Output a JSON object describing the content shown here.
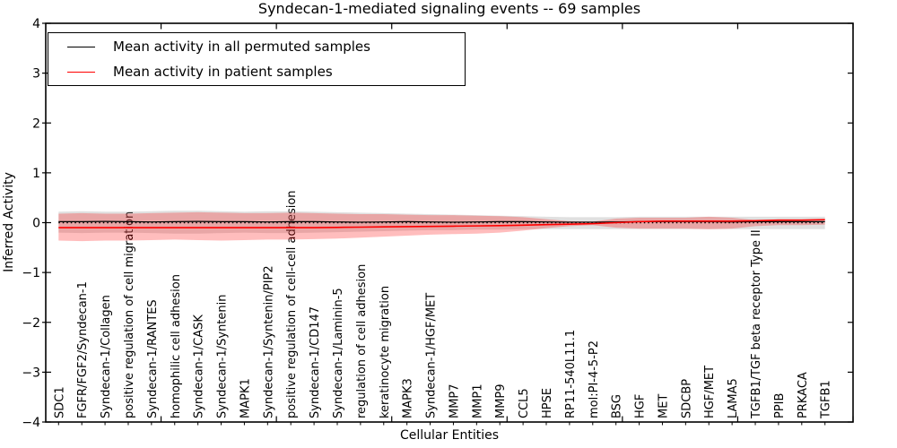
{
  "figure": {
    "title": "Syndecan-1-mediated signaling events -- 69 samples",
    "xlabel": "Cellular Entities",
    "ylabel": "Inferred Activity",
    "legend": [
      {
        "label": "Mean activity in all permuted samples",
        "color": "#000000"
      },
      {
        "label": "Mean activity in patient samples",
        "color": "#ff0000"
      }
    ]
  },
  "chart_data": {
    "type": "line",
    "title": "Syndecan-1-mediated signaling events -- 69 samples",
    "xlabel": "Cellular Entities",
    "ylabel": "Inferred Activity",
    "ylim": [
      -4,
      4
    ],
    "xlim": [
      0,
      35
    ],
    "y_ticks": [
      4,
      3,
      2,
      1,
      0,
      -1,
      -2,
      -3,
      -4
    ],
    "y_tick_labels": [
      "4",
      "3",
      "2",
      "1",
      "0",
      "−1",
      "−2",
      "−3",
      "−4"
    ],
    "x_major_tick_values": [
      5,
      10,
      15,
      20,
      25,
      30,
      35
    ],
    "grid": false,
    "legend_position": "upper left",
    "categories": [
      "SDC1",
      "FGFR/FGF2/Syndecan-1",
      "Syndecan-1/Collagen",
      "positive regulation of cell migration",
      "Syndecan-1/RANTES",
      "homophilic cell adhesion",
      "Syndecan-1/CASK",
      "Syndecan-1/Syntenin",
      "MAPK1",
      "Syndecan-1/Syntenin/PIP2",
      "positive regulation of cell-cell adhesion",
      "Syndecan-1/CD147",
      "Syndecan-1/Laminin-5",
      "regulation of cell adhesion",
      "keratinocyte migration",
      "MAPK3",
      "Syndecan-1/HGF/MET",
      "MMP7",
      "MMP1",
      "MMP9",
      "CCL5",
      "HPSE",
      "RP11-540L11.1",
      "mol:PI-4-5-P2",
      "BSG",
      "HGF",
      "MET",
      "SDCBP",
      "HGF/MET",
      "LAMA5",
      "TGFB1/TGF beta receptor Type II",
      "PPIB",
      "PRKACA",
      "TGFB1"
    ],
    "series": [
      {
        "name": "Mean activity in all permuted samples",
        "color": "#000000",
        "style": "solid",
        "values": [
          0.02,
          0.02,
          0.025,
          0.02,
          0.015,
          0.02,
          0.025,
          0.02,
          0.02,
          0.015,
          0.02,
          0.02,
          0.015,
          0.01,
          0.015,
          0.02,
          0.015,
          0.01,
          0.015,
          0.02,
          0.02,
          0.015,
          0.01,
          0.01,
          0.015,
          0.02,
          0.02,
          0.02,
          0.02,
          0.015,
          0.02,
          0.02,
          0.02,
          0.02
        ]
      },
      {
        "name": "Mean activity in patient samples",
        "color": "#ff0000",
        "style": "solid",
        "values": [
          -0.1,
          -0.1,
          -0.1,
          -0.1,
          -0.1,
          -0.1,
          -0.1,
          -0.1,
          -0.1,
          -0.1,
          -0.1,
          -0.1,
          -0.095,
          -0.09,
          -0.085,
          -0.08,
          -0.075,
          -0.07,
          -0.065,
          -0.06,
          -0.05,
          -0.04,
          -0.03,
          -0.02,
          0.0,
          0.02,
          0.03,
          0.03,
          0.03,
          0.03,
          0.04,
          0.05,
          0.05,
          0.06
        ]
      }
    ],
    "reference_line": {
      "value": 0,
      "style": "dotted",
      "color": "#000000"
    },
    "bands": [
      {
        "name": "permuted-std-band",
        "color": "#999999",
        "opacity": 0.3,
        "upper": [
          0.22,
          0.23,
          0.22,
          0.22,
          0.23,
          0.24,
          0.24,
          0.23,
          0.22,
          0.23,
          0.23,
          0.22,
          0.21,
          0.2,
          0.19,
          0.18,
          0.17,
          0.16,
          0.15,
          0.14,
          0.13,
          0.12,
          0.11,
          0.11,
          0.11,
          0.12,
          0.12,
          0.12,
          0.12,
          0.12,
          0.12,
          0.12,
          0.12,
          0.12
        ],
        "lower": [
          -0.2,
          -0.21,
          -0.2,
          -0.2,
          -0.21,
          -0.22,
          -0.22,
          -0.21,
          -0.2,
          -0.21,
          -0.21,
          -0.2,
          -0.19,
          -0.18,
          -0.17,
          -0.16,
          -0.15,
          -0.15,
          -0.14,
          -0.14,
          -0.13,
          -0.13,
          -0.13,
          -0.13,
          -0.13,
          -0.13,
          -0.13,
          -0.13,
          -0.13,
          -0.13,
          -0.13,
          -0.13,
          -0.13,
          -0.13
        ]
      },
      {
        "name": "patient-std-band",
        "color": "#ff0000",
        "opacity": 0.26,
        "upper": [
          0.18,
          0.19,
          0.18,
          0.18,
          0.19,
          0.2,
          0.21,
          0.2,
          0.19,
          0.19,
          0.2,
          0.19,
          0.18,
          0.17,
          0.17,
          0.16,
          0.15,
          0.15,
          0.14,
          0.13,
          0.11,
          0.07,
          0.03,
          0.02,
          0.08,
          0.1,
          0.1,
          0.1,
          0.12,
          0.1,
          0.05,
          0.03,
          0.03,
          0.03
        ],
        "lower": [
          -0.36,
          -0.37,
          -0.36,
          -0.36,
          -0.35,
          -0.34,
          -0.35,
          -0.36,
          -0.35,
          -0.34,
          -0.34,
          -0.33,
          -0.32,
          -0.3,
          -0.28,
          -0.26,
          -0.24,
          -0.23,
          -0.22,
          -0.2,
          -0.16,
          -0.11,
          -0.07,
          -0.05,
          -0.1,
          -0.12,
          -0.12,
          -0.12,
          -0.13,
          -0.12,
          -0.07,
          -0.05,
          -0.05,
          -0.04
        ]
      }
    ],
    "sample_count": "69"
  }
}
